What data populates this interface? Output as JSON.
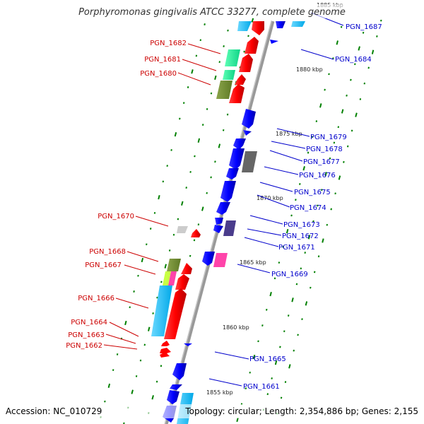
{
  "title": "Porphyromonas gingivalis ATCC 33277, complete genome",
  "accession_text": "Accession: NC_010729",
  "summary_text": "Topology: circular; Length: 2,354,886 bp; Genes: 2,155",
  "colors": {
    "forward": "#ff0000",
    "reverse": "#0000ff",
    "backbone": "#888888",
    "left_label": "#cc0000",
    "right_label": "#0000cc",
    "tick": "#008000"
  },
  "kbp_ticks": [
    "1885 kbp",
    "1880 kbp",
    "1875 kbp",
    "1870 kbp",
    "1865 kbp",
    "1860 kbp",
    "1855 kbp"
  ],
  "left_genes": [
    "PGN_1682",
    "PGN_1681",
    "PGN_1680",
    "PGN_1670",
    "PGN_1668",
    "PGN_1667",
    "PGN_1666",
    "PGN_1664",
    "PGN_1663",
    "PGN_1662"
  ],
  "right_genes": [
    "PGN_1687",
    "PGN_1684",
    "PGN_1679",
    "PGN_1678",
    "PGN_1677",
    "PGN_1676",
    "PGN_1675",
    "PGN_1674",
    "PGN_1673",
    "PGN_1672",
    "PGN_1671",
    "PGN_1669",
    "PGN_1665",
    "PGN_1661"
  ]
}
